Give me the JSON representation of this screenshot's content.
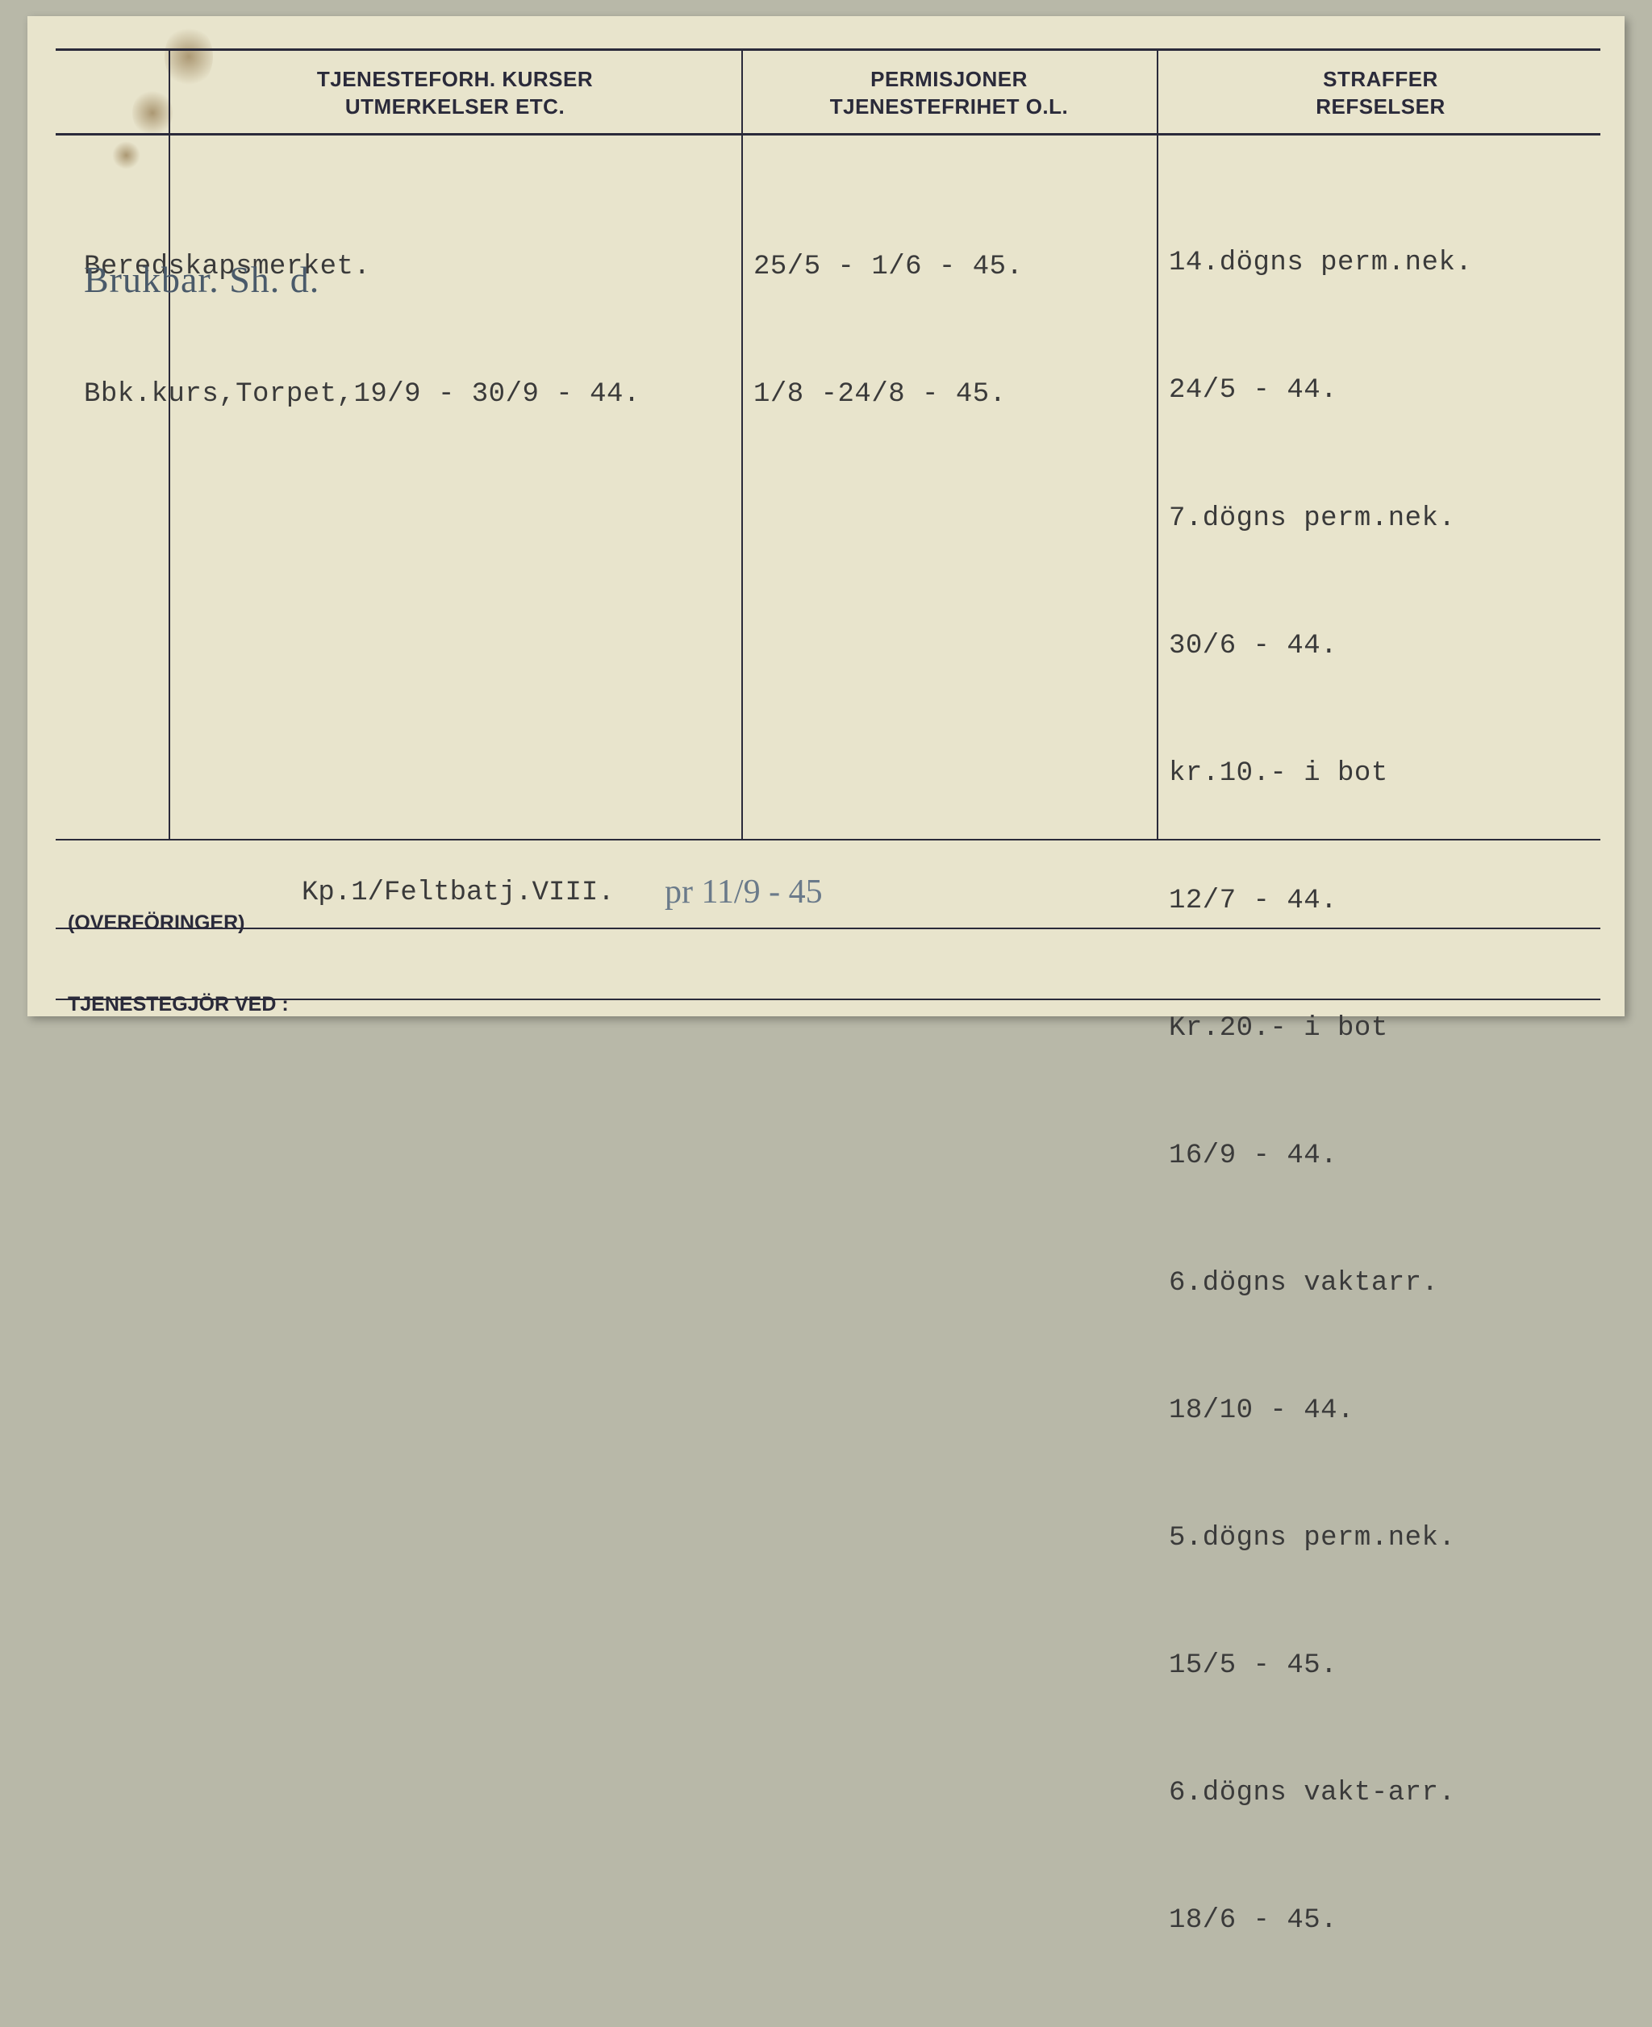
{
  "headers": {
    "col1_line1": "TJENESTEFORH. KURSER",
    "col1_line2": "UTMERKELSER ETC.",
    "col2_line1": "PERMISJONER",
    "col2_line2": "TJENESTEFRIHET O.L.",
    "col3_line1": "STRAFFER",
    "col3_line2": "REFSELSER"
  },
  "col1": {
    "line1": "Beredskapsmerket.",
    "line2": "Bbk.kurs,Torpet,19/9 - 30/9 - 44.",
    "hand": "Brukbar.   Sh. d."
  },
  "col2": {
    "line1": "25/5 - 1/6 - 45.",
    "line2": "1/8 -24/8 - 45."
  },
  "col3": {
    "l1": "14.dögns perm.nek.",
    "l2": "24/5 - 44.",
    "l3": "7.dögns perm.nek.",
    "l4": "30/6 - 44.",
    "l5": "kr.10.- i bot",
    "l6": "12/7 - 44.",
    "l7": "Kr.20.- i bot",
    "l8": "16/9 - 44.",
    "l9": "6.dögns vaktarr.",
    "l10": "18/10 - 44.",
    "l11": "5.dögns perm.nek.",
    "l12": "15/5 - 45.",
    "l13": "6.dögns vakt-arr.",
    "l14": "18/6 - 45."
  },
  "footer": {
    "label_line1": "(OVERFÖRINGER)",
    "label_line2": "TJENESTEGJÖR VED :",
    "typed": "Kp.1/Feltbatj.VIII.",
    "hand": "pr  11/9 - 45"
  }
}
